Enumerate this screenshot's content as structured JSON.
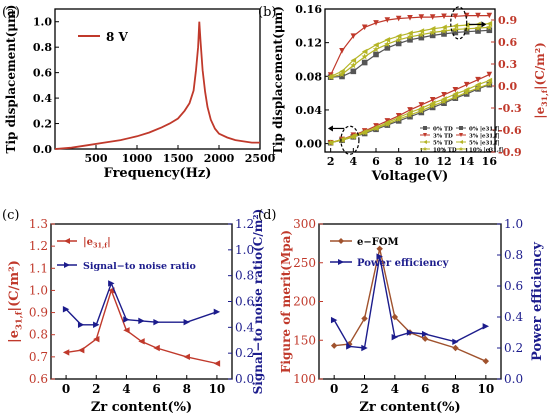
{
  "colors": {
    "red": "#c0392b",
    "navy": "#1c1c8c",
    "brown": "#a0522d",
    "gray": "#555555",
    "olive": "#b5b526",
    "black": "#000000"
  },
  "chart_data": [
    {
      "panel": "(a)",
      "type": "line",
      "xlabel": "Frequency(Hz)",
      "ylabel": "Tip displacement(μm)",
      "xlim": [
        0,
        2500
      ],
      "ylim": [
        0,
        1.1
      ],
      "xticks": [
        "500",
        "1000",
        "1500",
        "2000",
        "2500"
      ],
      "yticks": [
        "0.0",
        "0.2",
        "0.4",
        "0.6",
        "0.8",
        "1.0"
      ],
      "legend": "8 V",
      "series": [
        {
          "name": "8 V",
          "color": "#c0392b",
          "x": [
            0,
            200,
            400,
            600,
            800,
            1000,
            1150,
            1300,
            1400,
            1500,
            1580,
            1640,
            1690,
            1720,
            1745,
            1760,
            1775,
            1800,
            1830,
            1860,
            1900,
            1950,
            2000,
            2100,
            2200,
            2300,
            2400,
            2500
          ],
          "y": [
            0.0,
            0.01,
            0.03,
            0.05,
            0.07,
            0.1,
            0.13,
            0.17,
            0.2,
            0.24,
            0.3,
            0.36,
            0.46,
            0.62,
            0.8,
            1.0,
            0.85,
            0.62,
            0.45,
            0.33,
            0.23,
            0.16,
            0.12,
            0.09,
            0.07,
            0.06,
            0.05,
            0.05
          ]
        }
      ]
    },
    {
      "panel": "(b)",
      "type": "line",
      "xlabel": "Voltage(V)",
      "ylabel": "Tip displacement(μm)",
      "ylabel_right": "|e31,f|(C/m²)",
      "xlim": [
        1.5,
        16.5
      ],
      "ylim": [
        -0.01,
        0.16
      ],
      "ylim_right": [
        -0.9,
        1.05
      ],
      "xticks": [
        "2",
        "4",
        "6",
        "8",
        "10",
        "12",
        "14",
        "16"
      ],
      "yticks": [
        "0.00",
        "0.04",
        "0.08",
        "0.12",
        "0.16"
      ],
      "yticks_right": [
        "-0.9",
        "-0.6",
        "-0.3",
        "0.0",
        "0.3",
        "0.6",
        "0.9"
      ],
      "legend": [
        "0% TD",
        "3% TD",
        "5% TD",
        "10% TD",
        "0% |e31,f|",
        "3% |e31,f|",
        "5% |e31,f|",
        "10% |e31,f|"
      ],
      "x": [
        2,
        3,
        4,
        5,
        6,
        7,
        8,
        9,
        10,
        11,
        12,
        13,
        14,
        15,
        16
      ],
      "series": [
        {
          "name": "0% TD",
          "axis": "left",
          "color": "#555555",
          "marker": "square",
          "y": [
            0.001,
            0.004,
            0.008,
            0.012,
            0.017,
            0.022,
            0.027,
            0.032,
            0.037,
            0.043,
            0.048,
            0.054,
            0.059,
            0.065,
            0.07
          ]
        },
        {
          "name": "3% TD",
          "axis": "left",
          "color": "#c0392b",
          "marker": "triangle-down",
          "y": [
            0.001,
            0.005,
            0.01,
            0.015,
            0.021,
            0.027,
            0.033,
            0.04,
            0.046,
            0.052,
            0.058,
            0.064,
            0.07,
            0.076,
            0.082
          ]
        },
        {
          "name": "5% TD",
          "axis": "left",
          "color": "#b5b526",
          "marker": "triangle-left",
          "y": [
            0.001,
            0.005,
            0.009,
            0.014,
            0.019,
            0.025,
            0.031,
            0.037,
            0.042,
            0.048,
            0.053,
            0.059,
            0.064,
            0.07,
            0.075
          ]
        },
        {
          "name": "10% TD",
          "axis": "left",
          "color": "#b5b526",
          "marker": "star",
          "y": [
            0.001,
            0.004,
            0.008,
            0.013,
            0.018,
            0.023,
            0.029,
            0.034,
            0.039,
            0.045,
            0.05,
            0.055,
            0.061,
            0.066,
            0.071
          ]
        },
        {
          "name": "0% |e31,f|",
          "axis": "right",
          "color": "#555555",
          "marker": "square",
          "y": [
            0.12,
            0.13,
            0.2,
            0.32,
            0.43,
            0.52,
            0.58,
            0.63,
            0.66,
            0.69,
            0.71,
            0.73,
            0.74,
            0.75,
            0.76
          ]
        },
        {
          "name": "3% |e31,f|",
          "axis": "right",
          "color": "#c0392b",
          "marker": "triangle-down",
          "y": [
            0.15,
            0.48,
            0.68,
            0.8,
            0.86,
            0.9,
            0.92,
            0.93,
            0.94,
            0.94,
            0.95,
            0.95,
            0.96,
            0.96,
            0.96
          ]
        },
        {
          "name": "5% |e31,f|",
          "axis": "right",
          "color": "#b5b526",
          "marker": "triangle-left",
          "y": [
            0.13,
            0.2,
            0.35,
            0.47,
            0.56,
            0.63,
            0.68,
            0.72,
            0.75,
            0.78,
            0.8,
            0.82,
            0.83,
            0.84,
            0.85
          ]
        },
        {
          "name": "10% |e31,f|",
          "axis": "right",
          "color": "#b5b526",
          "marker": "star",
          "y": [
            0.12,
            0.16,
            0.28,
            0.4,
            0.5,
            0.57,
            0.63,
            0.67,
            0.7,
            0.73,
            0.75,
            0.77,
            0.78,
            0.79,
            0.8
          ]
        }
      ]
    },
    {
      "panel": "(c)",
      "type": "line",
      "xlabel": "Zr content(%)",
      "ylabel": "|e31,f|(C/m²)",
      "ylabel_right": "Signal−to noise ratio(C/m²)",
      "xlim": [
        -1,
        11
      ],
      "ylim": [
        0.6,
        1.3
      ],
      "ylim_right": [
        0,
        1.2
      ],
      "xticks": [
        "0",
        "2",
        "4",
        "6",
        "8",
        "10"
      ],
      "yticks": [
        "0.6",
        "0.7",
        "0.8",
        "0.9",
        "1.0",
        "1.1",
        "1.2",
        "1.3"
      ],
      "yticks_right": [
        "0.0",
        "0.2",
        "0.4",
        "0.6",
        "0.8",
        "1.0",
        "1.2"
      ],
      "legend": [
        "|e31,f|",
        "Signal−to noise ratio"
      ],
      "series": [
        {
          "name": "|e31,f|",
          "axis": "left",
          "color": "#c0392b",
          "marker": "triangle-left",
          "x": [
            0,
            1,
            2,
            3,
            4,
            5,
            6,
            8,
            10
          ],
          "y": [
            0.72,
            0.73,
            0.78,
            1.0,
            0.82,
            0.77,
            0.74,
            0.7,
            0.67
          ]
        },
        {
          "name": "Signal−to noise ratio",
          "axis": "right",
          "color": "#1c1c8c",
          "marker": "triangle-right",
          "x": [
            0,
            1,
            2,
            3,
            4,
            5,
            6,
            8,
            10
          ],
          "y": [
            0.54,
            0.42,
            0.42,
            0.74,
            0.46,
            0.45,
            0.44,
            0.44,
            0.52
          ]
        }
      ]
    },
    {
      "panel": "(d)",
      "type": "line",
      "xlabel": "Zr content(%)",
      "ylabel": "Figure of merit(Mpa)",
      "ylabel_right": "Power efficiency",
      "xlim": [
        -1,
        11
      ],
      "ylim": [
        100,
        300
      ],
      "ylim_right": [
        0,
        1.0
      ],
      "xticks": [
        "0",
        "2",
        "4",
        "6",
        "8",
        "10"
      ],
      "yticks": [
        "100",
        "150",
        "200",
        "250",
        "300"
      ],
      "yticks_right": [
        "0.0",
        "0.2",
        "0.4",
        "0.6",
        "0.8",
        "1.0"
      ],
      "legend": [
        "e−FOM",
        "Power efficiency"
      ],
      "series": [
        {
          "name": "e−FOM",
          "axis": "left",
          "color": "#a0522d",
          "marker": "diamond",
          "x": [
            0,
            1,
            2,
            3,
            4,
            5,
            6,
            8,
            10
          ],
          "y": [
            143,
            145,
            178,
            268,
            180,
            160,
            152,
            140,
            123
          ]
        },
        {
          "name": "Power efficiency",
          "axis": "right",
          "color": "#1c1c8c",
          "marker": "triangle-right",
          "x": [
            0,
            1,
            2,
            3,
            4,
            5,
            6,
            8,
            10
          ],
          "y": [
            0.38,
            0.21,
            0.2,
            0.79,
            0.27,
            0.3,
            0.29,
            0.24,
            0.34
          ]
        }
      ]
    }
  ]
}
